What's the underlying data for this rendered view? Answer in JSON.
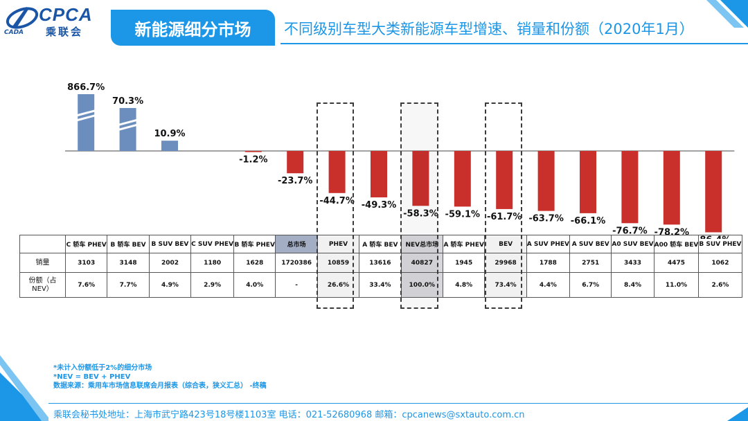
{
  "header": {
    "logo_text": "CPCA",
    "logo_cn": "乘联会",
    "logo_small": "CADA",
    "section_title": "新能源细分市场",
    "subtitle": "不同级别车型大类新能源车型增速、销量和份额（2020年1月）"
  },
  "colors": {
    "accent": "#1c96e6",
    "positive_bar": "#6c8ebf",
    "negative_bar": "#c9302c",
    "total_cell": "#a3aec5"
  },
  "chart_data": {
    "type": "bar",
    "categories": [
      "C 轿车 PHEV",
      "B 轿车 BEV",
      "B SUV BEV",
      "C SUV PHEV",
      "B 轿车 PHEV",
      "总市场",
      "PHEV",
      "A 轿车 BEV",
      "NEV总市场",
      "A 轿车 PHEV",
      "BEV",
      "A SUV PHEV",
      "A SUV BEV",
      "A0 SUV BEV",
      "A00 轿车 BEV",
      "B SUV PHEV"
    ],
    "values": [
      866.7,
      70.3,
      10.9,
      null,
      -1.2,
      -23.7,
      -44.7,
      -49.3,
      -58.3,
      -59.1,
      -61.7,
      -63.7,
      -66.1,
      -76.7,
      -78.2,
      -86.4
    ],
    "data_labels": [
      "866.7%",
      "70.3%",
      "10.9%",
      "",
      "-1.2%",
      "-23.7%",
      "-44.7%",
      "-49.3%",
      "-58.3%",
      "-59.1%",
      "-61.7%",
      "-63.7%",
      "-66.1%",
      "-76.7%",
      "-78.2%",
      "-86.4%"
    ],
    "axis_break": [
      true,
      true,
      false,
      false,
      false,
      false,
      false,
      false,
      false,
      false,
      false,
      false,
      false,
      false,
      false,
      false
    ],
    "ylim": [
      -100,
      50
    ],
    "legend": "none",
    "grid": false
  },
  "table": {
    "row_labels": [
      "销量",
      "份额（占NEV）"
    ],
    "sales": [
      "3103",
      "3148",
      "2002",
      "1180",
      "1628",
      "1720386",
      "10859",
      "13616",
      "40827",
      "1945",
      "29968",
      "1788",
      "2751",
      "3433",
      "4475",
      "1062"
    ],
    "share": [
      "7.6%",
      "7.7%",
      "4.9%",
      "2.9%",
      "4.0%",
      "-",
      "26.6%",
      "33.4%",
      "100.0%",
      "4.8%",
      "73.4%",
      "4.4%",
      "6.7%",
      "8.4%",
      "11.0%",
      "2.6%"
    ]
  },
  "notes": [
    "*未计入份额低于2%的细分市场",
    "*NEV = BEV + PHEV",
    "数据来源：乘用车市场信息联席会月报表（综合表，狭义汇总）  -终稿"
  ],
  "footer": "乘联会秘书处地址：上海市武宁路423号18号楼1103室  电话：021-52680968   邮箱：cpcanews@sxtauto.com.cn"
}
